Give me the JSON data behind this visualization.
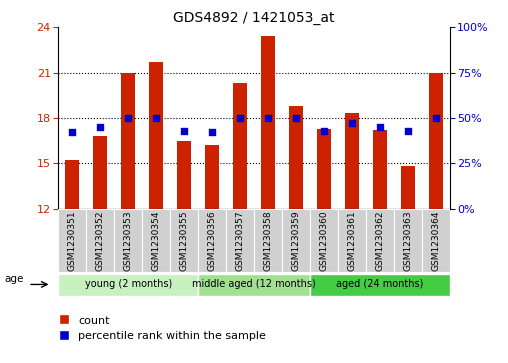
{
  "title": "GDS4892 / 1421053_at",
  "samples": [
    "GSM1230351",
    "GSM1230352",
    "GSM1230353",
    "GSM1230354",
    "GSM1230355",
    "GSM1230356",
    "GSM1230357",
    "GSM1230358",
    "GSM1230359",
    "GSM1230360",
    "GSM1230361",
    "GSM1230362",
    "GSM1230363",
    "GSM1230364"
  ],
  "counts": [
    15.2,
    16.8,
    21.0,
    21.7,
    16.5,
    16.2,
    20.3,
    23.4,
    18.8,
    17.3,
    18.3,
    17.2,
    14.8,
    21.0
  ],
  "percentiles": [
    42,
    45,
    50,
    50,
    43,
    42,
    50,
    50,
    50,
    43,
    47,
    45,
    43,
    50
  ],
  "ylim_left": [
    12,
    24
  ],
  "ylim_right": [
    0,
    100
  ],
  "yticks_left": [
    12,
    15,
    18,
    21,
    24
  ],
  "yticks_right": [
    0,
    25,
    50,
    75,
    100
  ],
  "yticklabels_right": [
    "0%",
    "25%",
    "50%",
    "75%",
    "100%"
  ],
  "bar_color": "#cc2200",
  "dot_color": "#0000cc",
  "bar_width": 0.5,
  "groups": [
    {
      "label": "young (2 months)",
      "n": 5,
      "color": "#c8f0c0"
    },
    {
      "label": "middle aged (12 months)",
      "n": 4,
      "color": "#a0e090"
    },
    {
      "label": "aged (24 months)",
      "n": 5,
      "color": "#44cc44"
    }
  ],
  "age_label": "age",
  "legend_count_label": "count",
  "legend_percentile_label": "percentile rank within the sample",
  "grid_yticks": [
    15,
    18,
    21
  ]
}
